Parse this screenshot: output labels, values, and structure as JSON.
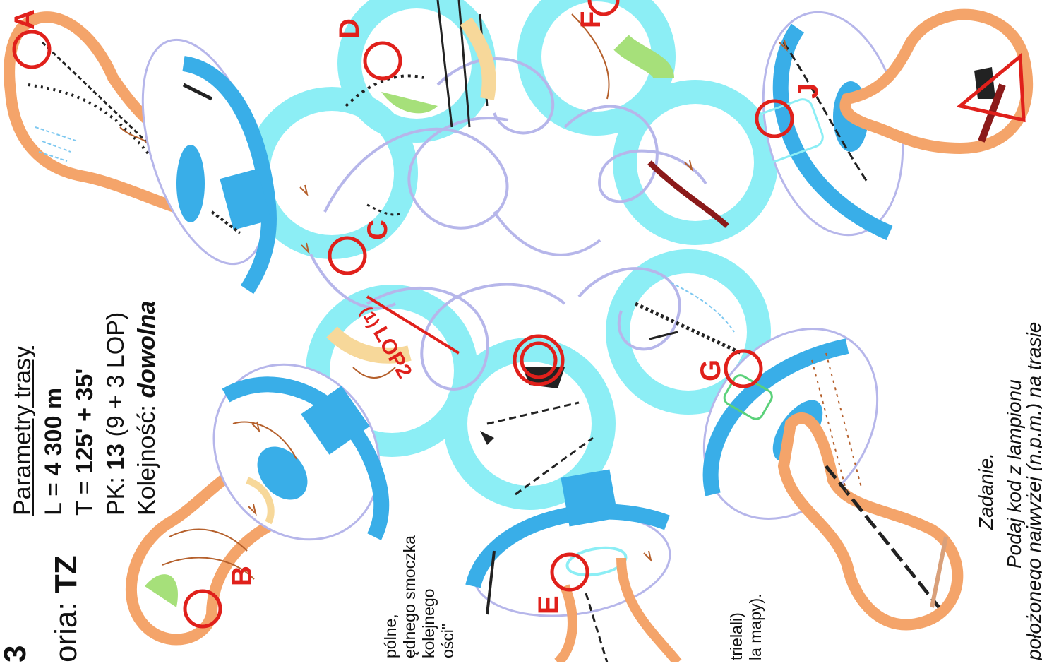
{
  "params": {
    "title": "Parametry trasy",
    "length_label": "L = ",
    "length_value": "4 300 m",
    "time_label": "T = ",
    "time_value": "125' + 35'",
    "controls_label": "PK: ",
    "controls_value": "13",
    "controls_detail": " (9 + 3 LOP)",
    "order_label": "Kolejność: ",
    "order_value": "dowolna"
  },
  "category": {
    "label": "oria: ",
    "value": "TZ",
    "cut_char": "3"
  },
  "left_fragment": [
    "pólne,",
    "ędnego smoczka",
    "kolejnego",
    "ości\""
  ],
  "right_fragment": [
    "trielali)",
    "la mapy)."
  ],
  "task": {
    "title": "Zadanie.",
    "line1": "Podaj kod z lampionu",
    "line2": "położonego najwyżej (n.p.m.) na trasie"
  },
  "map": {
    "controls": [
      "A",
      "B",
      "C",
      "D",
      "E",
      "F",
      "G",
      "J"
    ],
    "lop_label": "LOP2",
    "lop_number": "(1)",
    "colors": {
      "orange": "#f4a46a",
      "blue": "#39aee8",
      "cyan": "#8ceef5",
      "lavender": "#b6b6ea",
      "red": "#e0201b",
      "brown": "#b5602c",
      "green": "#a6e07a",
      "yellow": "#f7d89a"
    }
  }
}
